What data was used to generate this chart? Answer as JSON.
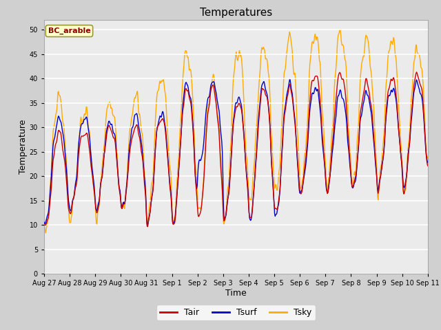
{
  "title": "Temperatures",
  "xlabel": "Time",
  "ylabel": "Temperature",
  "ylim": [
    0,
    52
  ],
  "yticks": [
    0,
    5,
    10,
    15,
    20,
    25,
    30,
    35,
    40,
    45,
    50
  ],
  "legend_labels": [
    "Tair",
    "Tsurf",
    "Tsky"
  ],
  "legend_colors": [
    "#cc0000",
    "#0000cc",
    "#ffaa00"
  ],
  "annotation_text": "BC_arable",
  "plot_bg_color": "#ebebeb",
  "grid_color": "#ffffff",
  "tick_labels": [
    "Aug 27",
    "Aug 28",
    "Aug 29",
    "Aug 30",
    "Aug 31",
    "Sep 1",
    "Sep 2",
    "Sep 3",
    "Sep 4",
    "Sep 5",
    "Sep 6",
    "Sep 7",
    "Sep 8",
    "Sep 9",
    "Sep 10",
    "Sep 11"
  ]
}
